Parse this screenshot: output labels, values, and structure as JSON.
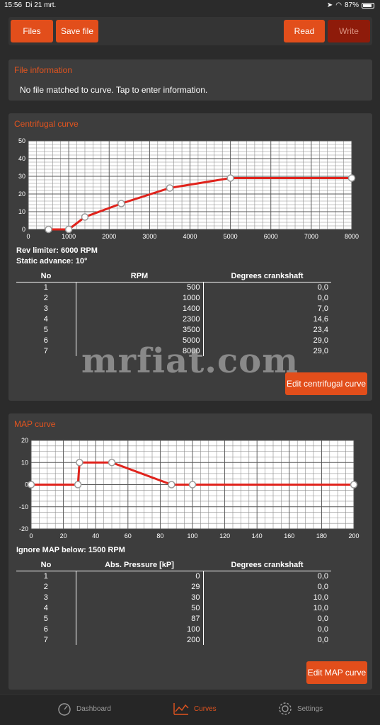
{
  "status": {
    "time": "15:56",
    "date": "Di 21 mrt.",
    "battery": "87%"
  },
  "toolbar": {
    "files": "Files",
    "save_file": "Save file",
    "read": "Read",
    "write": "Write"
  },
  "file_info": {
    "title": "File information",
    "text": "No file matched to curve. Tap to enter information."
  },
  "centrifugal": {
    "title": "Centrifugal curve",
    "rev_limiter": "Rev limiter: 6000 RPM",
    "static_advance": "Static advance: 10°",
    "headers": [
      "No",
      "RPM",
      "Degrees crankshaft"
    ],
    "rows": [
      [
        "1",
        "500",
        "0,0"
      ],
      [
        "2",
        "1000",
        "0,0"
      ],
      [
        "3",
        "1400",
        "7,0"
      ],
      [
        "4",
        "2300",
        "14,6"
      ],
      [
        "5",
        "3500",
        "23,4"
      ],
      [
        "6",
        "5000",
        "29,0"
      ],
      [
        "7",
        "8000",
        "29,0"
      ]
    ],
    "edit_button": "Edit centrifugal curve"
  },
  "map": {
    "title": "MAP curve",
    "ignore": "Ignore MAP below: 1500 RPM",
    "headers": [
      "No",
      "Abs. Pressure [kP]",
      "Degrees crankshaft"
    ],
    "rows": [
      [
        "1",
        "0",
        "0,0"
      ],
      [
        "2",
        "29",
        "0,0"
      ],
      [
        "3",
        "30",
        "10,0"
      ],
      [
        "4",
        "50",
        "10,0"
      ],
      [
        "5",
        "87",
        "0,0"
      ],
      [
        "6",
        "100",
        "0,0"
      ],
      [
        "7",
        "200",
        "0,0"
      ]
    ],
    "edit_button": "Edit MAP curve"
  },
  "tabs": {
    "dashboard": "Dashboard",
    "curves": "Curves",
    "settings": "Settings"
  },
  "watermark": "mrfiat.com",
  "colors": {
    "accent": "#e2541f",
    "curve": "#e0231c",
    "panel": "#3d3d3d",
    "background": "#2b2b2b"
  },
  "chart_data": [
    {
      "type": "line",
      "x": [
        500,
        1000,
        1400,
        2300,
        3500,
        5000,
        8000
      ],
      "y": [
        0,
        0,
        7,
        14.6,
        23.4,
        29,
        29
      ],
      "xlim": [
        0,
        8000
      ],
      "ylim": [
        0,
        50
      ],
      "xticks": [
        0,
        1000,
        2000,
        3000,
        4000,
        5000,
        6000,
        7000,
        8000
      ],
      "yticks": [
        0,
        10,
        20,
        30,
        40,
        50
      ],
      "grid": true
    },
    {
      "type": "line",
      "x": [
        0,
        29,
        30,
        50,
        87,
        100,
        200
      ],
      "y": [
        0,
        0,
        10,
        10,
        0,
        0,
        0
      ],
      "xlim": [
        0,
        200
      ],
      "ylim": [
        -20,
        20
      ],
      "xticks": [
        0,
        20,
        40,
        60,
        80,
        100,
        120,
        140,
        160,
        180,
        200
      ],
      "yticks": [
        -20,
        -10,
        0,
        10,
        20
      ],
      "grid": true
    }
  ]
}
